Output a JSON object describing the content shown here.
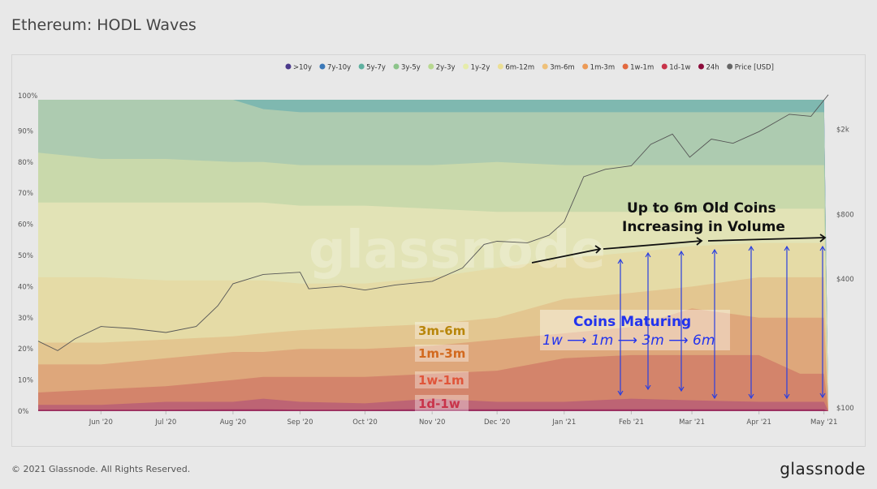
{
  "title": "Ethereum: HODL Waves",
  "footer": "© 2021 Glassnode. All Rights Reserved.",
  "logo": "glassnode",
  "chart_data": {
    "type": "area",
    "stacked": true,
    "title": "Ethereum: HODL Waves",
    "y_left": {
      "ticks": [
        "0%",
        "10%",
        "20%",
        "30%",
        "40%",
        "50%",
        "60%",
        "70%",
        "80%",
        "90%",
        "100%"
      ],
      "range": [
        0,
        100
      ]
    },
    "y_right": {
      "scale": "log",
      "ticks": [
        "$100",
        "$400",
        "$800",
        "$2k"
      ]
    },
    "x_ticks": [
      "Jun '20",
      "Jul '20",
      "Aug '20",
      "Sep '20",
      "Oct '20",
      "Nov '20",
      "Dec '20",
      "Jan '21",
      "Feb '21",
      "Mar '21",
      "Apr '21",
      "May '21"
    ],
    "legend_position": "top-right",
    "legend": [
      {
        "name": ">10y",
        "color": "#4b3a8c"
      },
      {
        "name": "7y-10y",
        "color": "#3a78b8"
      },
      {
        "name": "5y-7y",
        "color": "#5fb0a0"
      },
      {
        "name": "3y-5y",
        "color": "#8cc48a"
      },
      {
        "name": "2y-3y",
        "color": "#b8d890"
      },
      {
        "name": "1y-2y",
        "color": "#e6ecaa"
      },
      {
        "name": "6m-12m",
        "color": "#ecdf94"
      },
      {
        "name": "3m-6m",
        "color": "#eec079"
      },
      {
        "name": "1m-3m",
        "color": "#ec9a56"
      },
      {
        "name": "1w-1m",
        "color": "#e2693f"
      },
      {
        "name": "1d-1w",
        "color": "#c8334a"
      },
      {
        "name": "24h",
        "color": "#8b0a3a"
      },
      {
        "name": "Price [USD]",
        "color": "#666666"
      }
    ],
    "dates": [
      "2020-05-03",
      "2020-06-01",
      "2020-07-01",
      "2020-08-01",
      "2020-08-15",
      "2020-09-01",
      "2020-10-01",
      "2020-11-01",
      "2020-12-01",
      "2021-01-01",
      "2021-02-01",
      "2021-03-01",
      "2021-04-01",
      "2021-04-20",
      "2021-05-01"
    ],
    "cumulative_percent": {
      "24h": [
        0.5,
        0.5,
        0.5,
        0.6,
        0.6,
        0.5,
        0.5,
        0.6,
        0.6,
        0.6,
        0.6,
        0.6,
        0.6,
        0.6,
        0.6
      ],
      "1d-1w": [
        2,
        2,
        3,
        3,
        4,
        3,
        2.5,
        4,
        3,
        3,
        4,
        3.5,
        3,
        3,
        3
      ],
      "1w-1m": [
        6,
        7,
        8,
        10,
        11,
        11,
        11,
        12,
        13,
        17,
        18,
        18,
        18,
        12,
        12
      ],
      "1m-3m": [
        15,
        15,
        17,
        19,
        19,
        20,
        20,
        21,
        23,
        25,
        27,
        33,
        30,
        30,
        30
      ],
      "3m-6m": [
        22,
        22,
        23,
        24,
        25,
        26,
        27,
        28,
        30,
        36,
        38,
        40,
        43,
        43,
        43
      ],
      "6m-12m": [
        43,
        43,
        42,
        42,
        42,
        41,
        41,
        43,
        46,
        49,
        51,
        53,
        54,
        54,
        54
      ],
      "1y-2y": [
        67,
        67,
        67,
        67,
        67,
        66,
        66,
        65,
        64,
        64,
        64,
        64,
        65,
        65,
        65
      ],
      "2y-3y": [
        83,
        81,
        81,
        80,
        80,
        79,
        79,
        79,
        80,
        79,
        79,
        79,
        79,
        79,
        79
      ],
      "3y-5y": [
        100,
        100,
        100,
        100,
        97,
        96,
        96,
        96,
        96,
        96,
        96,
        96,
        96,
        96,
        96
      ],
      "5y-7y": [
        100,
        100,
        100,
        100,
        100,
        100,
        100,
        100,
        100,
        100,
        100,
        100,
        100,
        100,
        100
      ],
      "7y-10y": [
        100,
        100,
        100,
        100,
        100,
        100,
        100,
        100,
        100,
        100,
        100,
        100,
        100,
        100,
        100
      ],
      ">10y": [
        100,
        100,
        100,
        100,
        100,
        100,
        100,
        100,
        100,
        100,
        100,
        100,
        100,
        100,
        100
      ]
    },
    "price_usd": {
      "dates": [
        "2020-05-03",
        "2020-05-12",
        "2020-05-20",
        "2020-06-01",
        "2020-06-15",
        "2020-07-01",
        "2020-07-15",
        "2020-07-25",
        "2020-08-01",
        "2020-08-15",
        "2020-09-01",
        "2020-09-05",
        "2020-09-20",
        "2020-10-01",
        "2020-10-15",
        "2020-11-01",
        "2020-11-15",
        "2020-11-25",
        "2020-12-01",
        "2020-12-15",
        "2020-12-25",
        "2021-01-01",
        "2021-01-10",
        "2021-01-20",
        "2021-02-01",
        "2021-02-10",
        "2021-02-20",
        "2021-02-28",
        "2021-03-10",
        "2021-03-20",
        "2021-04-01",
        "2021-04-15",
        "2021-04-25",
        "2021-05-03"
      ],
      "values": [
        205,
        185,
        210,
        240,
        235,
        225,
        240,
        300,
        380,
        420,
        430,
        360,
        370,
        355,
        375,
        390,
        450,
        580,
        600,
        590,
        640,
        740,
        1200,
        1300,
        1350,
        1700,
        1900,
        1480,
        1800,
        1720,
        1950,
        2350,
        2300,
        2900
      ]
    },
    "annotations": {
      "band_labels": [
        "3m-6m",
        "1m-3m",
        "1w-1m",
        "1d-1w"
      ],
      "maturing_title": "Coins Maturing",
      "maturing_steps": "1w ⟶ 1m ⟶ 3m ⟶ 6m",
      "volume_line1": "Up to 6m Old Coins",
      "volume_line2": "Increasing in Volume"
    },
    "watermark": "glassnode"
  }
}
